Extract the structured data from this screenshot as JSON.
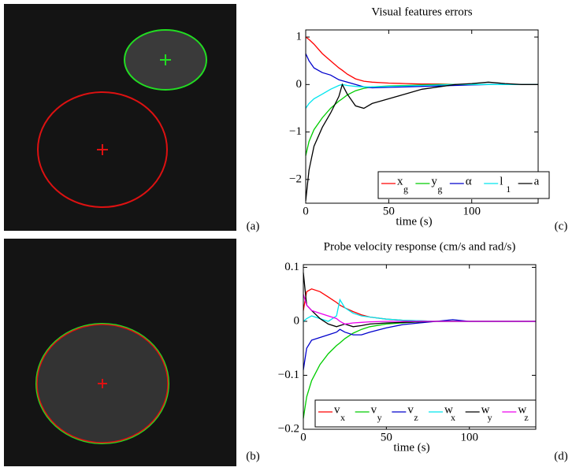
{
  "panel_labels": [
    "(a)",
    "(b)",
    "(c)",
    "(d)"
  ],
  "chart_data": [
    {
      "type": "line",
      "title": "Visual features errors",
      "x_label": "time (s)",
      "x": [
        0,
        2,
        5,
        10,
        15,
        20,
        22,
        25,
        30,
        35,
        40,
        50,
        60,
        70,
        80,
        90,
        100,
        110,
        120,
        130,
        140
      ],
      "xlim": [
        0,
        140
      ],
      "xticks": [
        0,
        50,
        100
      ],
      "ylim": [
        -2.5,
        1.15
      ],
      "yticks": [
        {
          "value": -2,
          "label": "−2"
        },
        {
          "value": -1,
          "label": "−1"
        },
        0,
        1
      ],
      "series": [
        {
          "name": "x",
          "subscript": "g",
          "color": "#ff0000",
          "values": [
            1.0,
            0.95,
            0.85,
            0.65,
            0.5,
            0.35,
            0.3,
            0.22,
            0.12,
            0.07,
            0.05,
            0.03,
            0.02,
            0.01,
            0.01,
            0,
            0,
            0,
            0,
            0,
            0
          ]
        },
        {
          "name": "y",
          "subscript": "g",
          "color": "#00cc00",
          "values": [
            -1.5,
            -1.2,
            -0.95,
            -0.7,
            -0.5,
            -0.35,
            -0.3,
            -0.22,
            -0.13,
            -0.08,
            -0.05,
            -0.03,
            -0.02,
            -0.01,
            0,
            0,
            0,
            0,
            0,
            0,
            0
          ]
        },
        {
          "name": "α",
          "color": "#0000cc",
          "values": [
            0.65,
            0.5,
            0.35,
            0.25,
            0.2,
            0.1,
            0.08,
            0.05,
            0.0,
            -0.05,
            -0.07,
            -0.06,
            -0.05,
            -0.04,
            -0.03,
            -0.02,
            -0.01,
            0,
            0,
            0,
            0
          ]
        },
        {
          "name": "l",
          "subscript": "1",
          "color": "#00e5ee",
          "values": [
            -0.5,
            -0.4,
            -0.3,
            -0.2,
            -0.1,
            -0.02,
            0.0,
            -0.02,
            -0.04,
            -0.05,
            -0.05,
            -0.04,
            -0.03,
            -0.02,
            -0.01,
            0,
            0,
            0,
            0,
            0,
            0
          ]
        },
        {
          "name": "a",
          "color": "#000000",
          "values": [
            -2.45,
            -1.8,
            -1.3,
            -0.9,
            -0.6,
            -0.25,
            0.0,
            -0.2,
            -0.45,
            -0.5,
            -0.4,
            -0.3,
            -0.2,
            -0.1,
            -0.05,
            0,
            0.02,
            0.05,
            0.02,
            0,
            0
          ]
        }
      ]
    },
    {
      "type": "line",
      "title": "Probe velocity response (cm/s and rad/s)",
      "x_label": "time (s)",
      "x": [
        0,
        2,
        5,
        10,
        15,
        20,
        22,
        25,
        30,
        35,
        40,
        50,
        60,
        70,
        80,
        90,
        100,
        110,
        120,
        130,
        140
      ],
      "xlim": [
        0,
        140
      ],
      "xticks": [
        0,
        50,
        100
      ],
      "ylim": [
        -0.2,
        0.105
      ],
      "yticks": [
        {
          "value": -0.2,
          "label": "−0.2"
        },
        {
          "value": -0.1,
          "label": "−0.1"
        },
        0,
        0.1
      ],
      "series": [
        {
          "name": "v",
          "subscript": "x",
          "color": "#ff0000",
          "values": [
            0.02,
            0.055,
            0.06,
            0.055,
            0.045,
            0.035,
            0.03,
            0.025,
            0.018,
            0.012,
            0.008,
            0.004,
            0.002,
            0.001,
            0,
            0,
            0,
            0,
            0,
            0,
            0
          ]
        },
        {
          "name": "v",
          "subscript": "y",
          "color": "#00cc00",
          "values": [
            -0.18,
            -0.14,
            -0.11,
            -0.08,
            -0.06,
            -0.045,
            -0.04,
            -0.032,
            -0.022,
            -0.015,
            -0.01,
            -0.005,
            -0.003,
            -0.001,
            0,
            0,
            0,
            0,
            0,
            0,
            0
          ]
        },
        {
          "name": "v",
          "subscript": "z",
          "color": "#0000cc",
          "values": [
            -0.09,
            -0.05,
            -0.035,
            -0.03,
            -0.025,
            -0.02,
            -0.015,
            -0.02,
            -0.025,
            -0.025,
            -0.02,
            -0.012,
            -0.006,
            -0.003,
            0,
            0.003,
            0,
            0,
            0,
            0,
            0
          ]
        },
        {
          "name": "w",
          "subscript": "x",
          "color": "#00e5ee",
          "values": [
            0.0,
            0.005,
            0.01,
            0.005,
            0.0,
            0.01,
            0.04,
            0.025,
            0.015,
            0.01,
            0.008,
            0.004,
            0.002,
            0.001,
            0,
            0,
            0,
            0,
            0,
            0,
            0
          ]
        },
        {
          "name": "w",
          "subscript": "y",
          "color": "#000000",
          "values": [
            0.09,
            0.03,
            0.02,
            0.005,
            -0.005,
            -0.01,
            -0.008,
            -0.005,
            -0.01,
            -0.008,
            -0.005,
            -0.003,
            -0.002,
            -0.001,
            0,
            0,
            0,
            0,
            0,
            0,
            0
          ]
        },
        {
          "name": "w",
          "subscript": "z",
          "color": "#ee00ee",
          "values": [
            0.05,
            0.03,
            0.02,
            0.015,
            0.01,
            0.005,
            0.0,
            -0.005,
            -0.003,
            -0.002,
            -0.001,
            0,
            0,
            0,
            0,
            0,
            0,
            0,
            0,
            0,
            0
          ]
        }
      ]
    }
  ]
}
